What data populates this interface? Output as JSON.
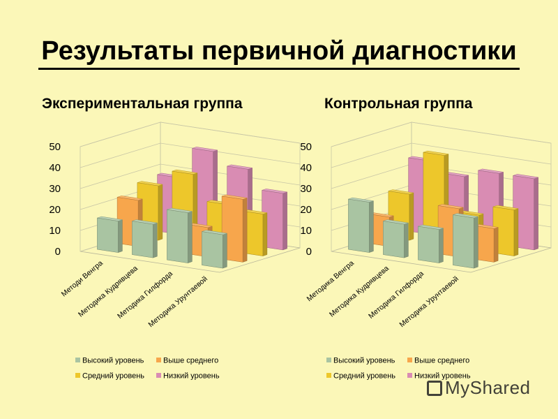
{
  "title": "Результаты первичной диагностики",
  "colors": {
    "background": "#fbf7b8",
    "series": [
      "#a9c4a2",
      "#f7a64c",
      "#edc72b",
      "#d98cb3"
    ]
  },
  "watermark": "MyShared",
  "chart_data": [
    {
      "type": "bar",
      "three_d": true,
      "title": "Экспериментальная группа",
      "categories": [
        "Методи Венгра",
        "Методика Кудрявцева",
        "Методика Гилфорда",
        "Методика Урунтаевой"
      ],
      "series": [
        {
          "name": "Высокий уровень",
          "values": [
            15,
            16,
            24,
            16
          ]
        },
        {
          "name": "Выше среднего",
          "values": [
            22,
            0,
            14,
            30
          ]
        },
        {
          "name": "Средний уровень",
          "values": [
            26,
            34,
            22,
            20
          ]
        },
        {
          "name": "Низкий уровень",
          "values": [
            27,
            42,
            36,
            27
          ]
        }
      ],
      "yticks": [
        "0",
        "10",
        "20",
        "30",
        "40",
        "50"
      ],
      "ylim": [
        0,
        50
      ],
      "legend_position": "bottom",
      "grid": true
    },
    {
      "type": "bar",
      "three_d": true,
      "title": "Контрольная группа",
      "categories": [
        "Методика Венгра",
        "Методика Кудрявцева",
        "Методика Гилфорда",
        "Методика Урунтаевой"
      ],
      "series": [
        {
          "name": "Высокий уровень",
          "values": [
            24,
            16,
            16,
            24
          ]
        },
        {
          "name": "Выше среднего",
          "values": [
            14,
            0,
            23,
            16
          ]
        },
        {
          "name": "Средний уровень",
          "values": [
            22,
            43,
            17,
            22
          ]
        },
        {
          "name": "Низкий уровень",
          "values": [
            35,
            30,
            34,
            34
          ]
        }
      ],
      "yticks": [
        "0",
        "10",
        "20",
        "30",
        "40",
        "50"
      ],
      "ylim": [
        0,
        50
      ],
      "legend_position": "bottom",
      "grid": true
    }
  ]
}
